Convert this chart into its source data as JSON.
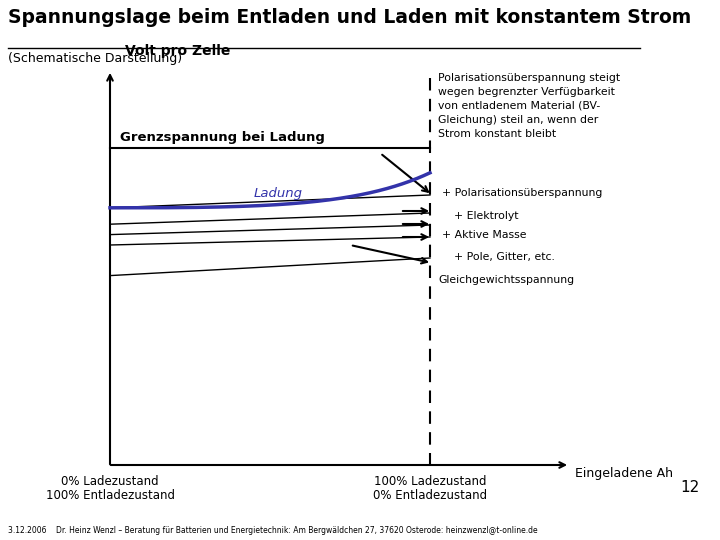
{
  "title": "Spannungslage beim Entladen und Laden mit konstantem Strom",
  "subtitle": "(Schematische Darstellung)",
  "ylabel": "Volt pro Zelle",
  "xlabel": "Eingeladene Ah",
  "x_left_label1": "0% Ladezustand",
  "x_left_label2": "100% Entladezustand",
  "x_right_label1": "100% Ladezustand",
  "x_right_label2": "0% Entladezustand",
  "grenzspannung_label": "Grenzspannung bei Ladung",
  "ladung_label": "Ladung",
  "annotation_right": [
    "Polarisationsüberspannung steigt",
    "wegen begrenzter Verfügbarkeit",
    "von entladenem Material (BV-",
    "Gleichung) steil an, wenn der",
    "Strom konstant bleibt"
  ],
  "annotations": [
    "+ Polarisationsüberspannung",
    "+ Elektrolyt",
    "+ Aktive Masse",
    "+ Pole, Gitter, etc.",
    "Gleichgewichtsspannung"
  ],
  "footer": "3.12.2006    Dr. Heinz Wenzl – Beratung für Batterien und Energietechnik: Am Bergwäldchen 27, 37620 Osterode: heinzwenzl@t-online.de",
  "page_number": "12",
  "bg_color": "#ffffff",
  "line_color": "#000000",
  "blue_color": "#3333aa"
}
